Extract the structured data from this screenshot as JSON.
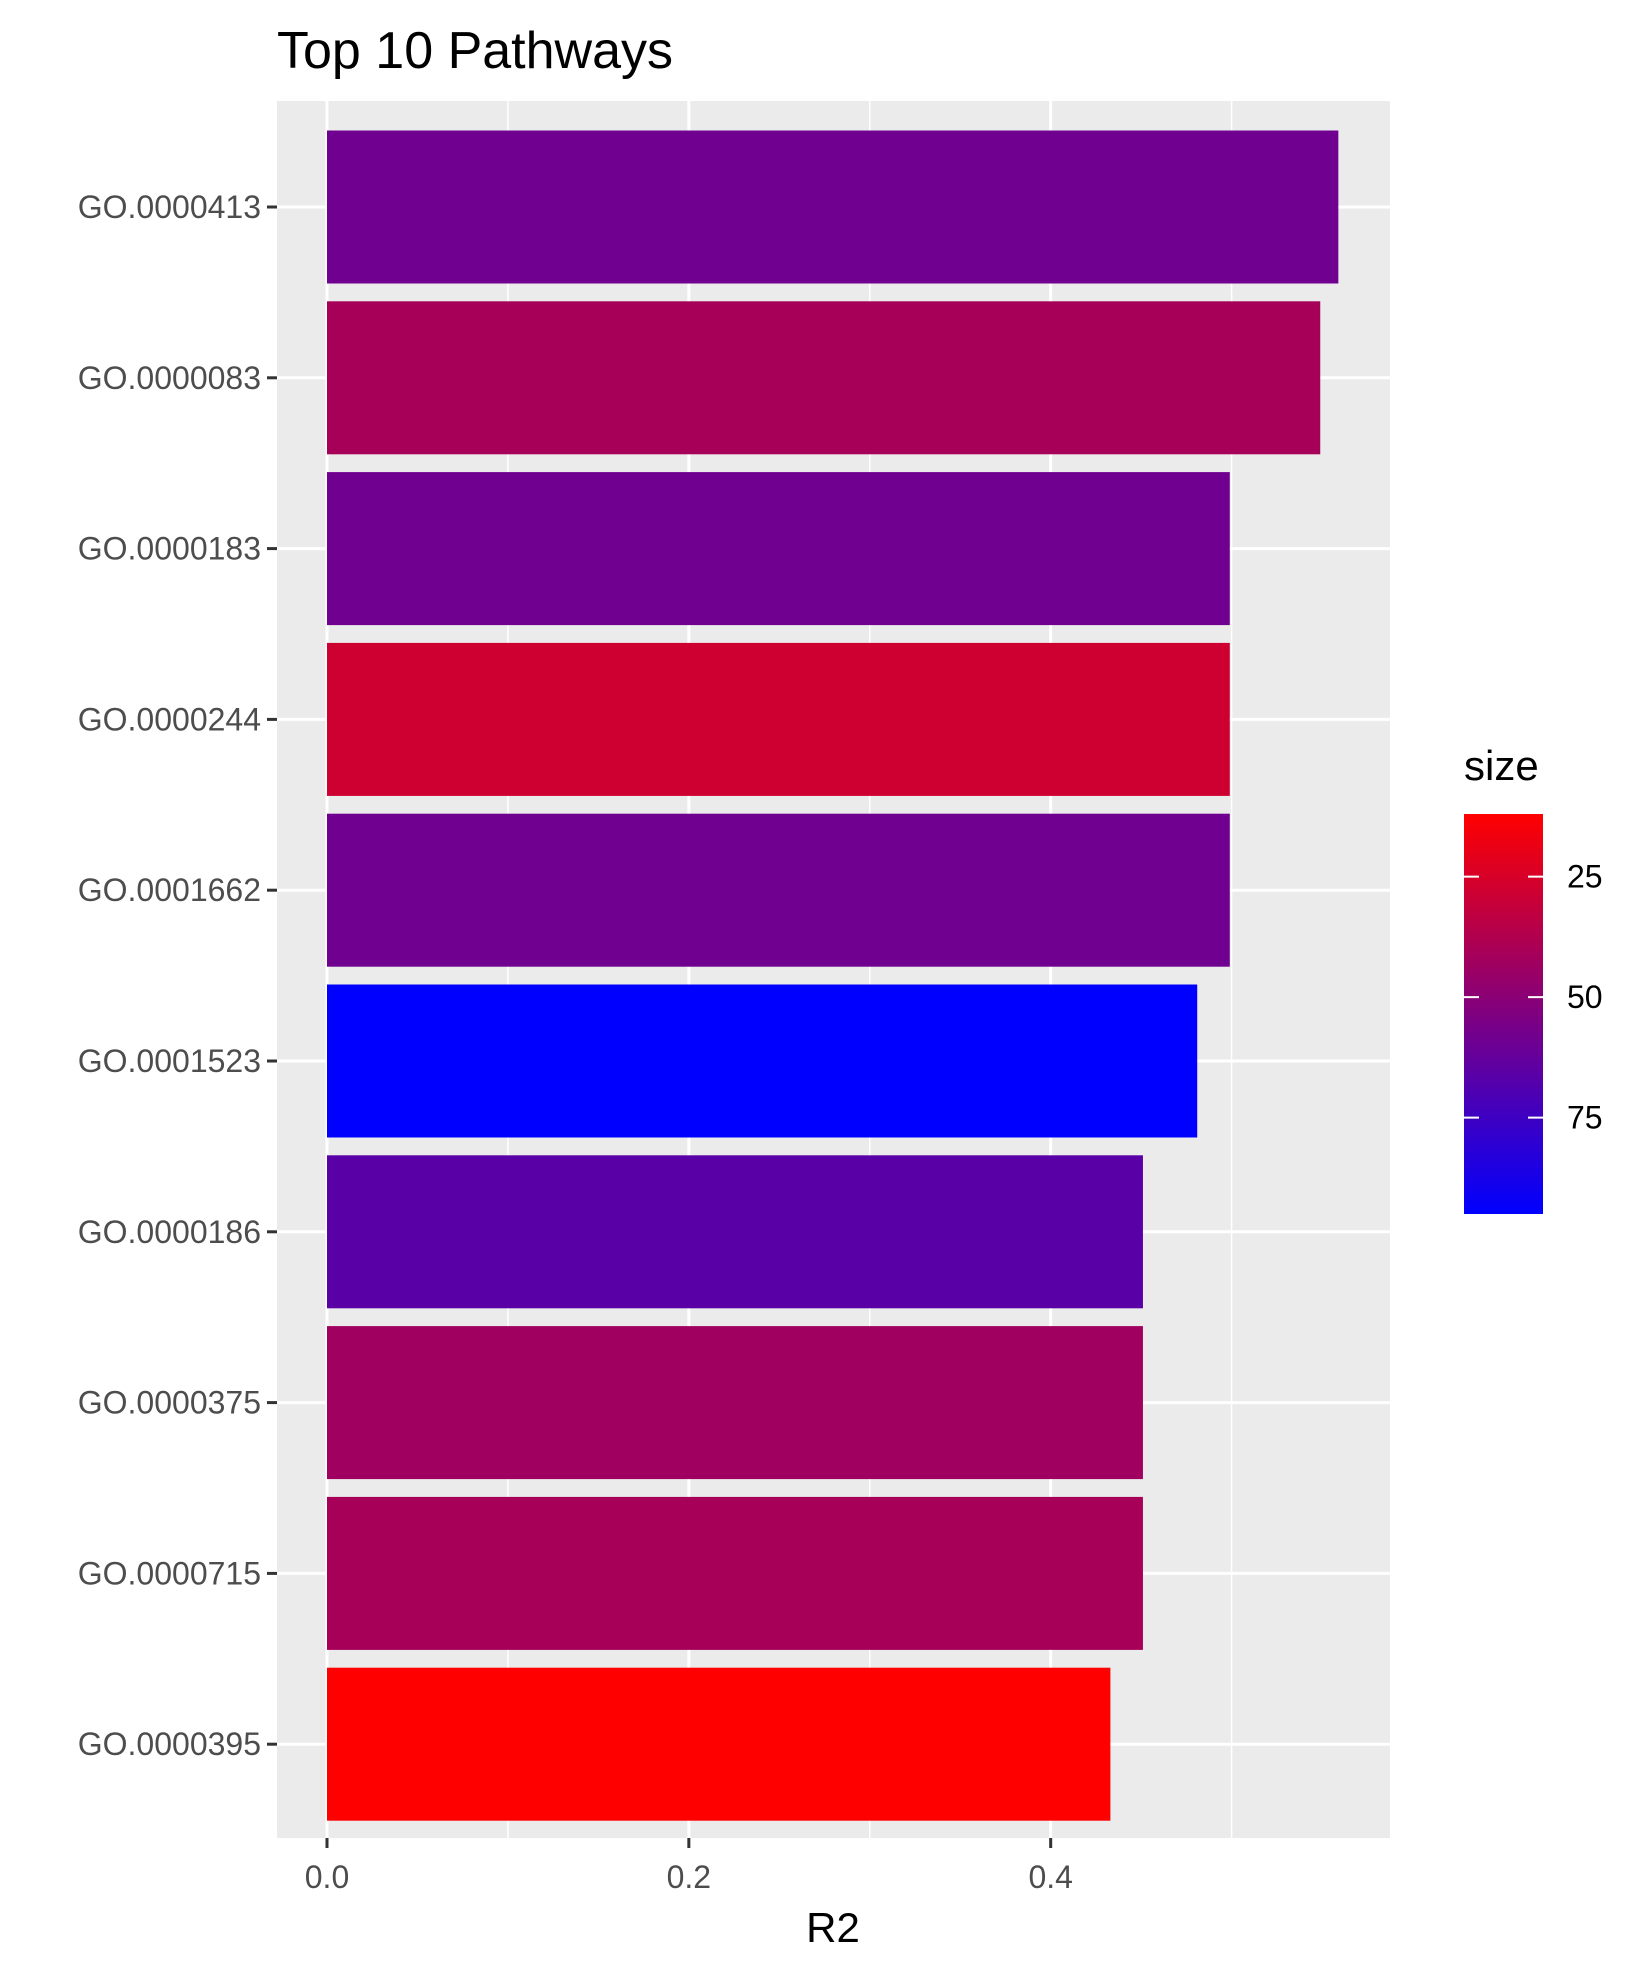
{
  "chart_data": {
    "type": "bar",
    "orientation": "horizontal",
    "title": "Top 10 Pathways",
    "xlabel": "R2",
    "ylabel": "",
    "xlim": [
      0,
      0.587
    ],
    "x_ticks": [
      "0.0",
      "0.2",
      "0.4"
    ],
    "x_tick_values": [
      0.0,
      0.2,
      0.4
    ],
    "categories": [
      "GO.0000413",
      "GO.0000083",
      "GO.0000183",
      "GO.0000244",
      "GO.0001662",
      "GO.0001523",
      "GO.0000186",
      "GO.0000375",
      "GO.0000715",
      "GO.0000395"
    ],
    "values": [
      0.559,
      0.549,
      0.499,
      0.499,
      0.499,
      0.481,
      0.451,
      0.451,
      0.451,
      0.433
    ],
    "fill_values": [
      59,
      41,
      59,
      28,
      59,
      95,
      66,
      43,
      41,
      12
    ],
    "grid": true,
    "legend": {
      "title": "size",
      "type": "colorbar",
      "position": "right",
      "labels": [
        "25",
        "50",
        "75"
      ],
      "label_values": [
        25,
        50,
        75
      ],
      "range": [
        12,
        95
      ],
      "low_color": "#ff0000",
      "high_color": "#0000ff"
    },
    "colors": {
      "panel": "#ebebeb",
      "grid": "#ffffff"
    }
  }
}
